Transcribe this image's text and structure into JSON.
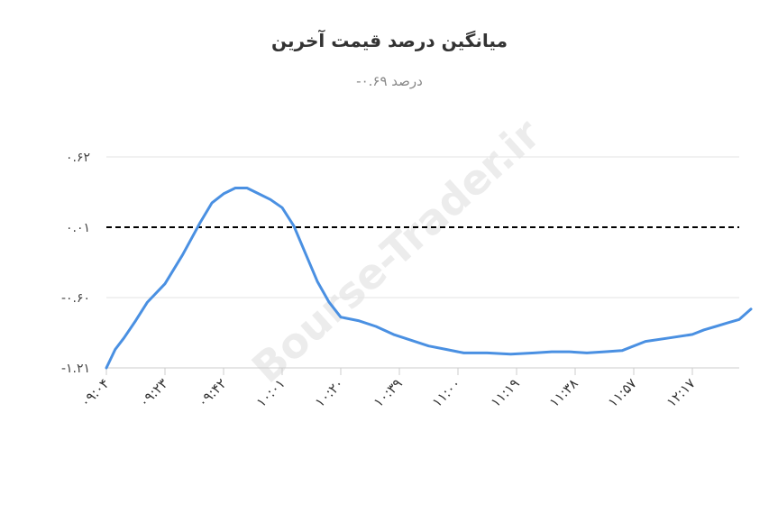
{
  "chart_data": {
    "type": "line",
    "title": "میانگین درصد قیمت آخرین",
    "subtitle": "درصد ۰.۶۹-",
    "xlabel": "",
    "ylabel": "",
    "ylim": [
      -1.21,
      0.82
    ],
    "y_ticks": [
      {
        "value": 0.62,
        "label": "۰.۶۲"
      },
      {
        "value": 0.01,
        "label": "۰.۰۱"
      },
      {
        "value": -0.6,
        "label": "-۰.۶۰"
      },
      {
        "value": -1.21,
        "label": "-۱.۲۱"
      }
    ],
    "reference_line": {
      "value": 0.01,
      "style": "dashed",
      "color": "#000000"
    },
    "x_ticks": [
      "۰۹:۰۴",
      "۰۹:۲۳",
      "۰۹:۴۲",
      "۱۰:۰۱",
      "۱۰:۲۰",
      "۱۰:۳۹",
      "۱۱:۰۰",
      "۱۱:۱۹",
      "۱۱:۳۸",
      "۱۱:۵۷",
      "۱۲:۱۷"
    ],
    "grid": true,
    "legend": "none",
    "series": [
      {
        "color": "#4a90e2",
        "x": [
          0,
          0.15,
          0.3,
          0.5,
          0.7,
          1.0,
          1.3,
          1.6,
          1.8,
          2.0,
          2.2,
          2.4,
          2.6,
          2.8,
          3.0,
          3.2,
          3.4,
          3.6,
          3.8,
          4.0,
          4.3,
          4.6,
          4.9,
          5.2,
          5.5,
          5.8,
          6.1,
          6.5,
          6.9,
          7.3,
          7.6,
          7.9,
          8.2,
          8.5,
          8.8,
          9.2,
          9.6,
          10.0,
          10.2,
          10.4,
          10.6,
          10.8,
          11.0
        ],
        "values": [
          -1.21,
          -1.05,
          -0.95,
          -0.8,
          -0.64,
          -0.48,
          -0.23,
          0.05,
          0.22,
          0.3,
          0.35,
          0.35,
          0.3,
          0.25,
          0.18,
          0.02,
          -0.22,
          -0.46,
          -0.64,
          -0.77,
          -0.8,
          -0.85,
          -0.92,
          -0.97,
          -1.02,
          -1.05,
          -1.08,
          -1.08,
          -1.09,
          -1.08,
          -1.07,
          -1.07,
          -1.08,
          -1.07,
          -1.06,
          -0.98,
          -0.95,
          -0.92,
          -0.88,
          -0.85,
          -0.82,
          -0.79,
          -0.7
        ]
      }
    ]
  },
  "watermark": {
    "main": "Bourse-Trader.ir"
  }
}
